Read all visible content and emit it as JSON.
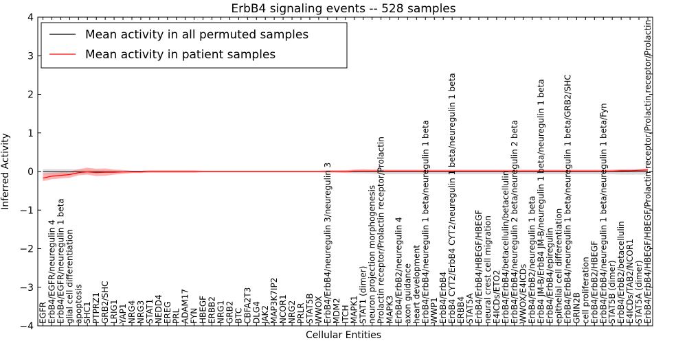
{
  "chart_data": {
    "type": "line",
    "title": "ErbB4 signaling events -- 528 samples",
    "xlabel": "Cellular Entities",
    "ylabel": "Inferred Activity",
    "ylim": [
      -4,
      4
    ],
    "yticks": [
      -4,
      -3,
      -2,
      -1,
      0,
      1,
      2,
      3,
      4
    ],
    "ytick_labels": [
      "−4",
      "−3",
      "−2",
      "−1",
      "0",
      "1",
      "2",
      "3",
      "4"
    ],
    "legend_position": "top-left",
    "categories": [
      "EGFR",
      "ErbB4/EGFR/neuregulin 4",
      "ErbB4/EGFR/neuregulin 1 beta",
      "glial cell differentiation",
      "apoptosis",
      "SHC1",
      "PTPRZ1",
      "GRB2/SHC",
      "LRIG1",
      "YAP1",
      "NRG4",
      "NRG3",
      "STAT1",
      "NEDD4",
      "EREG",
      "PRL",
      "ADAM17",
      "FYN",
      "HBEGF",
      "ERBB2",
      "NRG1",
      "GRB2",
      "BTC",
      "CBFA2T3",
      "DLG4",
      "JAK2",
      "MAP3K7IP2",
      "NCOR1",
      "NRG2",
      "PRLR",
      "STAT5B",
      "WWOX",
      "ErbB4/ErbB4/neuregulin 3/neuregulin 3",
      "MDM2",
      "ITCH",
      "MAPK1",
      "STAT1 (dimer)",
      "neuron projection morphogenesis",
      "Prolactin receptor/Prolactin receptor/Prolactin",
      "MAPK3",
      "ErbB4/ErbB2/neuregulin 4",
      "axon guidance",
      "heart development",
      "ErbB4/ErbB4/neuregulin 1 beta/neuregulin 1 beta",
      "WWP1",
      "ErbB4/ErbB4",
      "ErbB4 CYT2/ErbB4 CYT2/neuregulin 1 beta/neuregulin 1 beta",
      "ERBB4",
      "STAT5A",
      "ErbB4/ErbB4/HBEGF/HBEGF",
      "neural crest cell migration",
      "E4ICDs/ETO2",
      "ErbB4/ErbB4/betacellulin/betacellulin",
      "ErbB4/ErbB4/neuregulin 2 beta/neuregulin 2 beta",
      "WWOX/E4ICDs",
      "ErbB4/ErbB2/neuregulin 1 beta",
      "ErbB4 JM-B/ErbB4 JM-B/neuregulin 1 beta/neuregulin 1 beta",
      "ErbB4/ErbB4/epiregulin",
      "epithelial cell differentiation",
      "ErbB4/ErbB4/neuregulin 1 beta/neuregulin 1 beta/GRB2/SHC",
      "GRIN2B",
      "cell proliferation",
      "ErbB4/ErbB2/HBEGF",
      "ErbB4/ErbB4/neuregulin 1 beta/neuregulin 1 beta/Fyn",
      "STAT5B (dimer)",
      "ErbB4/ErbB2/betacellulin",
      "E4ICDs/TAB2/NCOR1",
      "STAT5A (dimer)",
      "ErbB4/ErbB4/HBEGF/HBEGF/Prolactin receptor/Prolactin receptor/Prolactin"
    ],
    "series": [
      {
        "name": "Mean activity in all permuted samples",
        "color": "#000000",
        "band_color": "#b0b0b0",
        "values": [
          -0.01,
          -0.01,
          -0.01,
          -0.01,
          -0.01,
          -0.01,
          -0.01,
          -0.01,
          -0.01,
          -0.01,
          0,
          0,
          0,
          0,
          0,
          0,
          0,
          0,
          0,
          0,
          0,
          0,
          0,
          0,
          0,
          0,
          0,
          0,
          0,
          0,
          0,
          0,
          0,
          0,
          0,
          0,
          0,
          0,
          0,
          0,
          0,
          0,
          0,
          0,
          0,
          0,
          0,
          0,
          0,
          0,
          0,
          0,
          0,
          0,
          0,
          0,
          0,
          0,
          0,
          0,
          0,
          0,
          0,
          0,
          0,
          0,
          0,
          0,
          0
        ],
        "band_lower": [
          -0.08,
          -0.08,
          -0.08,
          -0.08,
          -0.07,
          -0.06,
          -0.05,
          -0.04,
          -0.03,
          -0.03,
          -0.02,
          -0.02,
          -0.02,
          -0.02,
          -0.02,
          -0.02,
          -0.02,
          -0.02,
          -0.02,
          -0.02,
          -0.02,
          -0.02,
          -0.02,
          -0.02,
          -0.02,
          -0.02,
          -0.02,
          -0.02,
          -0.02,
          -0.02,
          -0.02,
          -0.02,
          -0.03,
          -0.03,
          -0.04,
          -0.05,
          -0.05,
          -0.06,
          -0.07,
          -0.07,
          -0.07,
          -0.07,
          -0.07,
          -0.07,
          -0.07,
          -0.07,
          -0.07,
          -0.07,
          -0.07,
          -0.07,
          -0.07,
          -0.07,
          -0.07,
          -0.07,
          -0.07,
          -0.07,
          -0.07,
          -0.07,
          -0.07,
          -0.07,
          -0.07,
          -0.07,
          -0.07,
          -0.07,
          -0.07,
          -0.08,
          -0.08,
          -0.08,
          -0.08
        ],
        "band_upper": [
          0.06,
          0.06,
          0.06,
          0.06,
          0.05,
          0.05,
          0.04,
          0.03,
          0.03,
          0.02,
          0.02,
          0.02,
          0.02,
          0.02,
          0.02,
          0.02,
          0.02,
          0.02,
          0.02,
          0.02,
          0.02,
          0.02,
          0.02,
          0.02,
          0.02,
          0.02,
          0.02,
          0.02,
          0.02,
          0.02,
          0.02,
          0.02,
          0.03,
          0.03,
          0.03,
          0.04,
          0.04,
          0.05,
          0.05,
          0.05,
          0.05,
          0.05,
          0.05,
          0.05,
          0.05,
          0.05,
          0.05,
          0.05,
          0.05,
          0.05,
          0.05,
          0.05,
          0.05,
          0.05,
          0.05,
          0.05,
          0.05,
          0.05,
          0.05,
          0.05,
          0.05,
          0.05,
          0.05,
          0.05,
          0.05,
          0.06,
          0.06,
          0.06,
          0.06
        ]
      },
      {
        "name": "Mean activity in patient samples",
        "color": "#ff0000",
        "band_color": "#ff8080",
        "values": [
          -0.17,
          -0.12,
          -0.1,
          -0.08,
          -0.03,
          -0.01,
          -0.03,
          -0.02,
          -0.02,
          -0.01,
          -0.01,
          -0.01,
          0,
          0,
          0,
          0,
          0,
          0,
          0,
          0,
          0,
          0,
          0,
          0,
          0,
          0,
          0,
          0,
          0,
          0,
          0,
          0,
          0,
          0,
          0,
          0.01,
          0.01,
          0.01,
          0.01,
          0.01,
          0.01,
          0.01,
          0.01,
          0.01,
          0.01,
          0.01,
          0.01,
          0.01,
          0.01,
          0.01,
          0.01,
          0.01,
          0.01,
          0.01,
          0.01,
          0.01,
          0.01,
          0.01,
          0.01,
          0.01,
          0.01,
          0.01,
          0.01,
          0.01,
          0.01,
          0.02,
          0.02,
          0.03,
          0.04
        ],
        "band_lower": [
          -0.25,
          -0.2,
          -0.18,
          -0.16,
          -0.1,
          -0.08,
          -0.12,
          -0.11,
          -0.08,
          -0.06,
          -0.04,
          -0.04,
          -0.03,
          -0.03,
          -0.03,
          -0.03,
          -0.03,
          -0.03,
          -0.02,
          -0.02,
          -0.02,
          -0.02,
          -0.02,
          -0.02,
          -0.02,
          -0.02,
          -0.02,
          -0.02,
          -0.02,
          -0.02,
          -0.02,
          -0.02,
          -0.02,
          -0.02,
          -0.03,
          -0.02,
          -0.02,
          -0.02,
          -0.02,
          -0.02,
          -0.02,
          -0.02,
          -0.02,
          -0.02,
          -0.02,
          -0.02,
          -0.02,
          -0.02,
          -0.02,
          -0.02,
          -0.02,
          -0.02,
          -0.02,
          -0.02,
          -0.02,
          -0.02,
          -0.02,
          -0.02,
          -0.02,
          -0.02,
          -0.02,
          -0.02,
          -0.02,
          -0.02,
          -0.02,
          -0.02,
          -0.01,
          -0.01,
          0
        ],
        "band_upper": [
          -0.05,
          -0.03,
          -0.02,
          0,
          0.06,
          0.1,
          0.07,
          0.08,
          0.05,
          0.04,
          0.02,
          0.02,
          0.03,
          0.03,
          0.03,
          0.03,
          0.03,
          0.03,
          0.02,
          0.02,
          0.02,
          0.02,
          0.02,
          0.02,
          0.02,
          0.02,
          0.02,
          0.02,
          0.02,
          0.02,
          0.02,
          0.02,
          0.03,
          0.03,
          0.03,
          0.05,
          0.06,
          0.05,
          0.05,
          0.04,
          0.04,
          0.04,
          0.04,
          0.04,
          0.04,
          0.04,
          0.04,
          0.04,
          0.04,
          0.04,
          0.04,
          0.04,
          0.04,
          0.04,
          0.04,
          0.04,
          0.04,
          0.04,
          0.04,
          0.04,
          0.04,
          0.04,
          0.04,
          0.04,
          0.04,
          0.05,
          0.05,
          0.06,
          0.08
        ]
      }
    ]
  }
}
